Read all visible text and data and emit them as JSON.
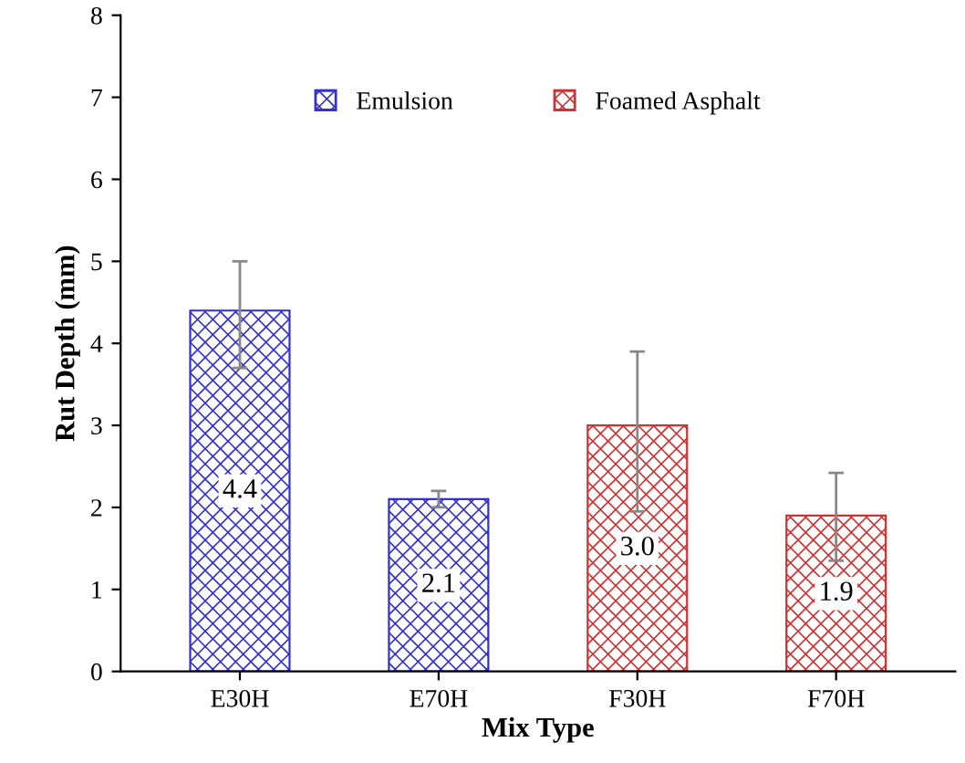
{
  "chart_data": {
    "type": "bar",
    "xlabel": "Mix Type",
    "ylabel": "Rut Depth (mm)",
    "categories": [
      "E30H",
      "E70H",
      "F30H",
      "F70H"
    ],
    "series": [
      {
        "name": "Emulsion",
        "color": "#3333cc",
        "values": [
          4.4,
          2.1,
          null,
          null
        ],
        "value_labels": [
          "4.4",
          "2.1",
          null,
          null
        ],
        "errors": [
          [
            3.7,
            5.0
          ],
          [
            2.0,
            2.2
          ],
          null,
          null
        ]
      },
      {
        "name": "Foamed Asphalt",
        "color": "#cc3333",
        "values": [
          null,
          null,
          3.0,
          1.9
        ],
        "value_labels": [
          null,
          null,
          "3.0",
          "1.9"
        ],
        "errors": [
          null,
          null,
          [
            1.95,
            3.9
          ],
          [
            1.35,
            2.42
          ]
        ]
      }
    ],
    "ylim": [
      0,
      8
    ],
    "yticks": [
      0,
      1,
      2,
      3,
      4,
      5,
      6,
      7,
      8
    ],
    "legend": "top",
    "grid": false
  }
}
